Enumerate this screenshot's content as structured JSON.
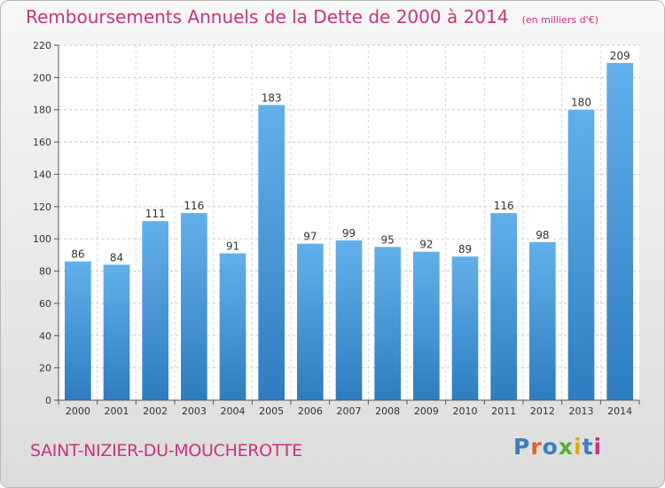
{
  "chart_data": {
    "type": "bar",
    "title": "Remboursements Annuels de la Dette de 2000 à 2014",
    "subtitle": "(en milliers d'€)",
    "categories": [
      "2000",
      "2001",
      "2002",
      "2003",
      "2004",
      "2005",
      "2006",
      "2007",
      "2008",
      "2009",
      "2010",
      "2011",
      "2012",
      "2013",
      "2014"
    ],
    "values": [
      86,
      84,
      111,
      116,
      91,
      183,
      97,
      99,
      95,
      92,
      89,
      116,
      98,
      180,
      209
    ],
    "ylim": [
      0,
      220
    ],
    "yticks": [
      0,
      20,
      40,
      60,
      80,
      100,
      120,
      140,
      160,
      180,
      200,
      220
    ],
    "grid": true,
    "xlabel": "",
    "ylabel": ""
  },
  "footer": {
    "commune": "SAINT-NIZIER-DU-MOUCHEROTTE",
    "logo_text": "Proxiti",
    "logo_colors": [
      "#3b7dc4",
      "#e2612a",
      "#3b7dc4",
      "#58b030",
      "#e8a51c",
      "#3b7dc4",
      "#c9347a"
    ]
  },
  "colors": {
    "accent": "#c9347a",
    "bar_top": "#62b0ea",
    "bar_bottom": "#2e7dc0"
  }
}
